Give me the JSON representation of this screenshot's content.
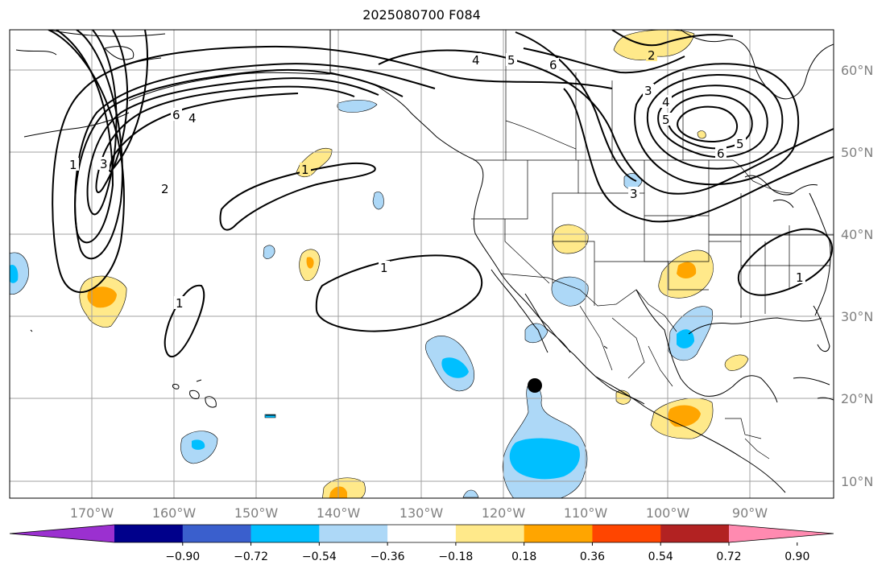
{
  "title": "2025080700 F084",
  "lon_labels": [
    "170°W",
    "160°W",
    "150°W",
    "140°W",
    "130°W",
    "120°W",
    "110°W",
    "100°W",
    "90°W"
  ],
  "lat_labels": [
    "60°N",
    "50°N",
    "40°N",
    "30°N",
    "20°N",
    "10°N"
  ],
  "colorbar": {
    "ticks": [
      "−0.90",
      "−0.72",
      "−0.54",
      "−0.36",
      "−0.18",
      "0.18",
      "0.36",
      "0.54",
      "0.72",
      "0.90"
    ],
    "colors": [
      "#9b30d0",
      "#00008b",
      "#3a5fcd",
      "#00bfff",
      "#add8f7",
      "#ffffff",
      "#ffe98a",
      "#ffa500",
      "#ff4500",
      "#b22222",
      "#ff8ab0"
    ]
  },
  "contour_labels": [
    "1",
    "2",
    "3",
    "4",
    "5",
    "6"
  ],
  "map": {
    "contour_color": "#000000",
    "coast_color": "#000000",
    "grid_color": "#a0a0a0",
    "marker": "black-dot"
  }
}
